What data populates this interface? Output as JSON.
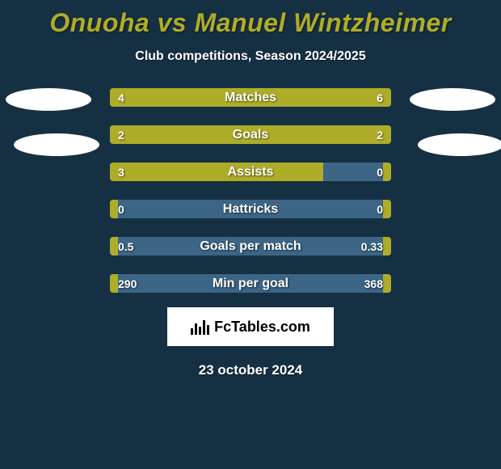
{
  "background_color": "#163043",
  "title": {
    "text": "Onuoha vs Manuel Wintzheimer",
    "color": "#aead29",
    "fontsize": 32
  },
  "subtitle": "Club competitions, Season 2024/2025",
  "date": "23 october 2024",
  "brand": {
    "name": "FcTables.com",
    "box_bg": "#ffffff"
  },
  "avatar": {
    "left_count": 2,
    "right_count": 2,
    "bg": "#ffffff"
  },
  "bar_style": {
    "track_color": "#3c6586",
    "left_fill_color": "#aead29",
    "right_fill_color": "#aead29",
    "label_color": "#ffffff",
    "height": 23,
    "radius": 4
  },
  "rows": [
    {
      "label": "Matches",
      "left": "4",
      "right": "6",
      "left_pct": 40,
      "right_pct": 60
    },
    {
      "label": "Goals",
      "left": "2",
      "right": "2",
      "left_pct": 50,
      "right_pct": 50
    },
    {
      "label": "Assists",
      "left": "3",
      "right": "0",
      "left_pct": 76,
      "right_pct": 3
    },
    {
      "label": "Hattricks",
      "left": "0",
      "right": "0",
      "left_pct": 3,
      "right_pct": 3
    },
    {
      "label": "Goals per match",
      "left": "0.5",
      "right": "0.33",
      "left_pct": 3,
      "right_pct": 3
    },
    {
      "label": "Min per goal",
      "left": "290",
      "right": "368",
      "left_pct": 3,
      "right_pct": 3
    }
  ]
}
